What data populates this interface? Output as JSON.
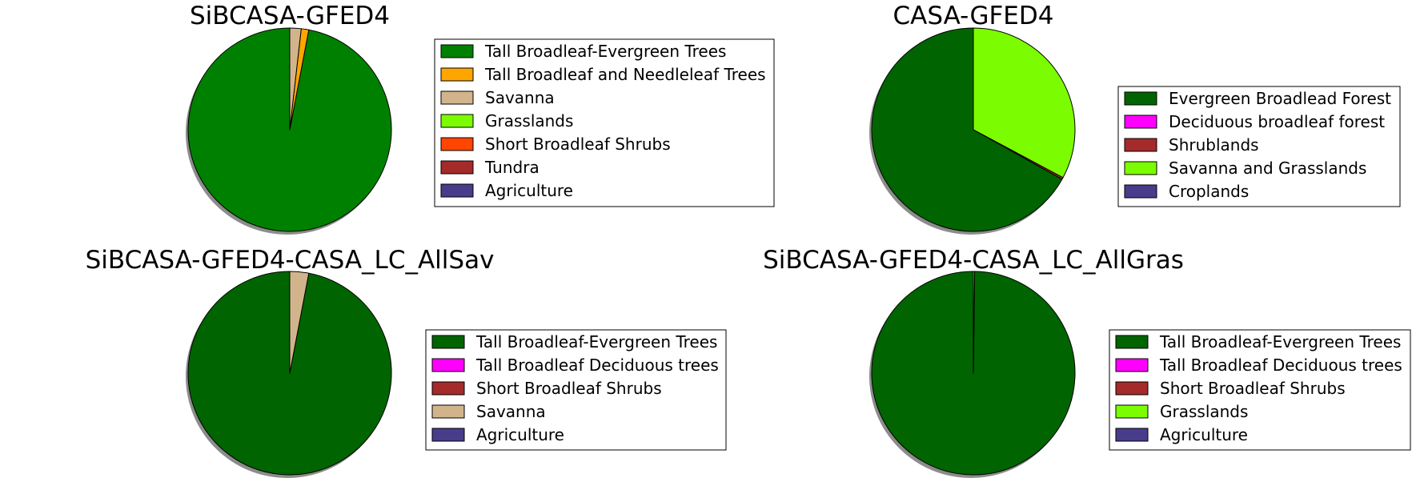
{
  "chart_data": [
    {
      "type": "pie",
      "title": "SiBCASA-GFED4",
      "series": [
        {
          "name": "Tall Broadleaf-Evergreen Trees",
          "value": 97.0,
          "color": "#008000"
        },
        {
          "name": "Tall Broadleaf and Needleleaf Trees",
          "value": 1.2,
          "color": "#FFA500"
        },
        {
          "name": "Savanna",
          "value": 1.8,
          "color": "#D2B48C"
        },
        {
          "name": "Grasslands",
          "value": 0,
          "color": "#7CFC00"
        },
        {
          "name": "Short Broadleaf Shrubs",
          "value": 0,
          "color": "#FF4500"
        },
        {
          "name": "Tundra",
          "value": 0,
          "color": "#A52A2A"
        },
        {
          "name": "Agriculture",
          "value": 0,
          "color": "#483D8B"
        }
      ]
    },
    {
      "type": "pie",
      "title": "CASA-GFED4",
      "series": [
        {
          "name": "Evergreen Broadlead Forest",
          "value": 66.9,
          "color": "#006400"
        },
        {
          "name": "Deciduous broadleaf forest",
          "value": 0,
          "color": "#FF00FF"
        },
        {
          "name": "Shrublands",
          "value": 0.3,
          "color": "#A52A2A"
        },
        {
          "name": "Savanna and Grasslands",
          "value": 32.8,
          "color": "#7CFC00"
        },
        {
          "name": "Croplands",
          "value": 0,
          "color": "#483D8B"
        }
      ]
    },
    {
      "type": "pie",
      "title": "SiBCASA-GFED4-CASA_LC_AllSav",
      "series": [
        {
          "name": "Tall Broadleaf-Evergreen Trees",
          "value": 97.0,
          "color": "#006400"
        },
        {
          "name": "Tall Broadleaf Deciduous trees",
          "value": 0,
          "color": "#FF00FF"
        },
        {
          "name": "Short Broadleaf Shrubs",
          "value": 0,
          "color": "#A52A2A"
        },
        {
          "name": "Savanna",
          "value": 3.0,
          "color": "#D2B48C"
        },
        {
          "name": "Agriculture",
          "value": 0,
          "color": "#483D8B"
        }
      ]
    },
    {
      "type": "pie",
      "title": "SiBCASA-GFED4-CASA_LC_AllGras",
      "series": [
        {
          "name": "Tall Broadleaf-Evergreen Trees",
          "value": 99.8,
          "color": "#006400"
        },
        {
          "name": "Tall Broadleaf Deciduous trees",
          "value": 0,
          "color": "#FF00FF"
        },
        {
          "name": "Short Broadleaf Shrubs",
          "value": 0,
          "color": "#A52A2A"
        },
        {
          "name": "Grasslands",
          "value": 0.2,
          "color": "#7CFC00"
        },
        {
          "name": "Agriculture",
          "value": 0,
          "color": "#483D8B"
        }
      ]
    }
  ]
}
